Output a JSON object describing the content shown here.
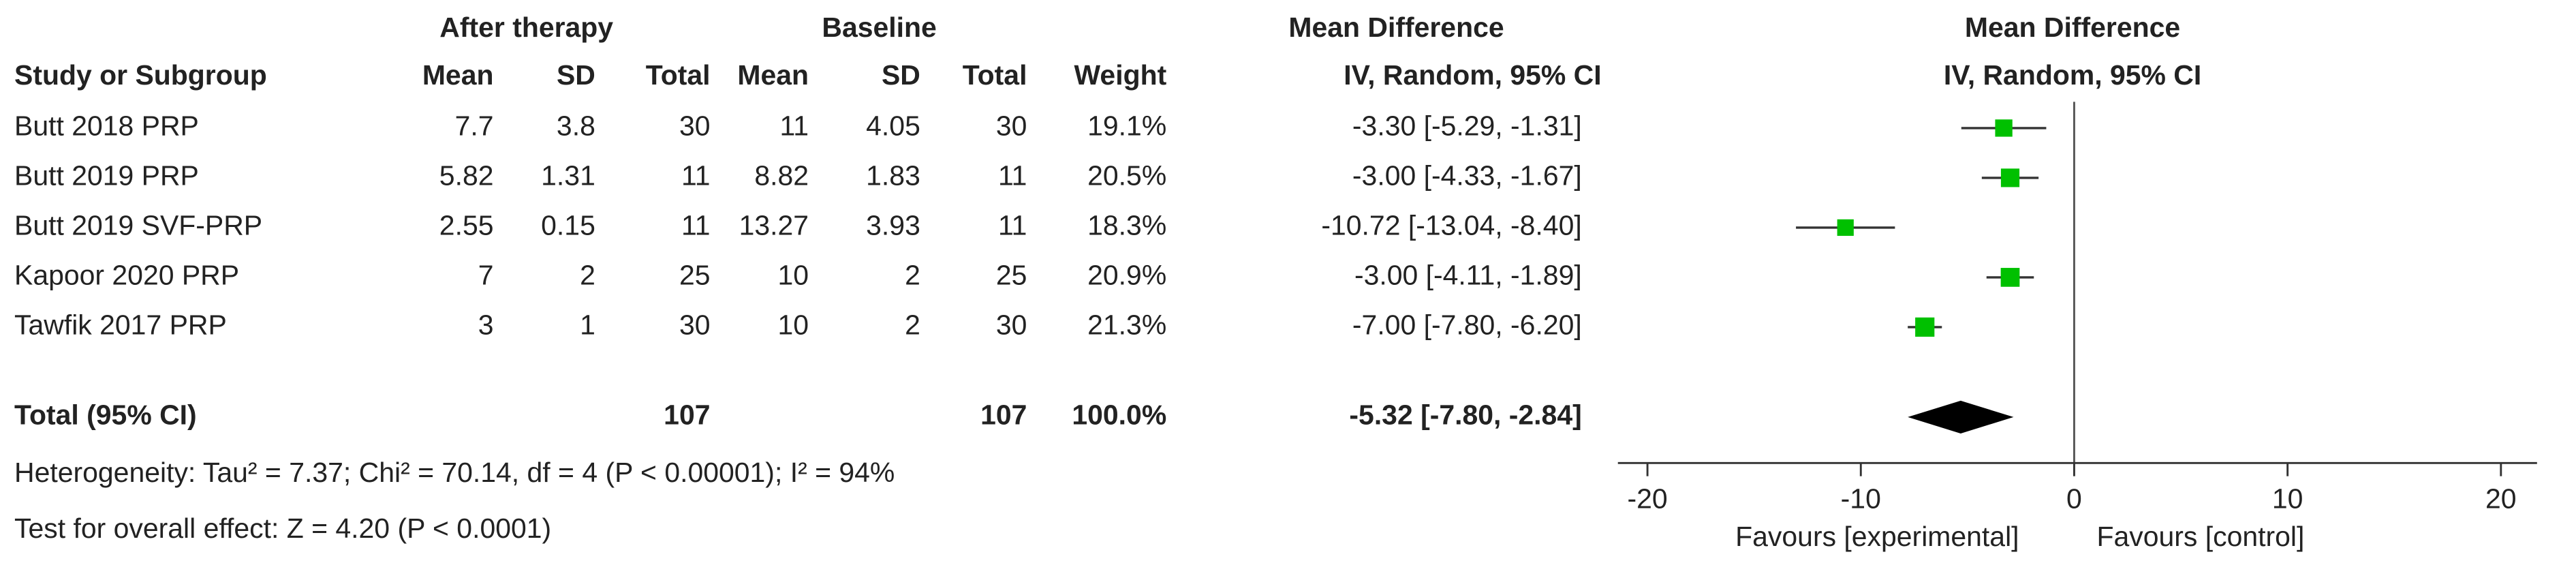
{
  "chart_data": {
    "type": "forest",
    "group_headers": [
      "After therapy",
      "Baseline",
      "Mean Difference",
      "Mean Difference"
    ],
    "column_headers": [
      "Study or Subgroup",
      "Mean",
      "SD",
      "Total",
      "Mean",
      "SD",
      "Total",
      "Weight",
      "IV, Random, 95% CI",
      "IV, Random, 95% CI"
    ],
    "studies": [
      "Butt 2018 PRP",
      "Butt 2019 PRP",
      "Butt 2019 SVF-PRP",
      "Kapoor 2020 PRP",
      "Tawfik 2017 PRP"
    ],
    "experimental": {
      "mean": [
        7.7,
        5.82,
        2.55,
        7,
        3
      ],
      "sd": [
        3.8,
        1.31,
        0.15,
        2,
        1
      ],
      "total": [
        30,
        11,
        11,
        25,
        30
      ]
    },
    "control": {
      "mean": [
        11,
        8.82,
        13.27,
        10,
        10
      ],
      "sd": [
        4.05,
        1.83,
        3.93,
        2,
        2
      ],
      "total": [
        30,
        11,
        11,
        25,
        30
      ]
    },
    "weights": [
      19.1,
      20.5,
      18.3,
      20.9,
      21.3
    ],
    "weight_labels": [
      "19.1%",
      "20.5%",
      "18.3%",
      "20.9%",
      "21.3%"
    ],
    "md": [
      -3.3,
      -3.0,
      -10.72,
      -3.0,
      -7.0
    ],
    "ci_low": [
      -5.29,
      -4.33,
      -13.04,
      -4.11,
      -7.8
    ],
    "ci_high": [
      -1.31,
      -1.67,
      -8.4,
      -1.89,
      -6.2
    ],
    "md_labels": [
      "-3.30 [-5.29, -1.31]",
      "-3.00 [-4.33, -1.67]",
      "-10.72 [-13.04, -8.40]",
      "-3.00 [-4.11, -1.89]",
      "-7.00 [-7.80, -6.20]"
    ],
    "total": {
      "label": "Total (95% CI)",
      "experimental_total": 107,
      "control_total": 107,
      "weight": 100.0,
      "weight_label": "100.0%",
      "md": -5.32,
      "ci_low": -7.8,
      "ci_high": -2.84,
      "md_label": "-5.32 [-7.80, -2.84]"
    },
    "heterogeneity": "Heterogeneity: Tau² = 7.37; Chi² = 70.14, df = 4 (P < 0.00001); I² = 94%",
    "overall_effect": "Test for overall effect: Z = 4.20 (P < 0.0001)",
    "xlim": [
      -20,
      20
    ],
    "xticks": [
      -20,
      -10,
      0,
      10,
      20
    ],
    "xlabel_left": "Favours [experimental]",
    "xlabel_right": "Favours [control]",
    "marker_color": "#00c000",
    "diamond_color": "#000000"
  }
}
